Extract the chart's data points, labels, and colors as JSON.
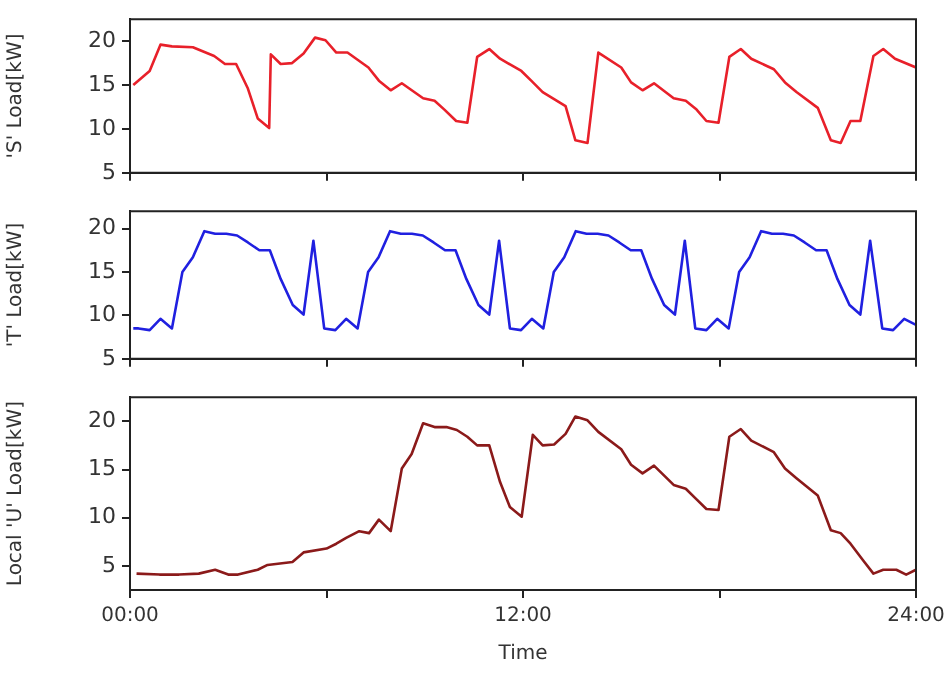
{
  "chart_data": [
    {
      "type": "line",
      "ylabel": "'S' Load[kW]",
      "x": [
        0.1,
        0.6,
        0.93,
        1.28,
        1.92,
        2.57,
        2.9,
        3.24,
        3.6,
        3.9,
        4.25,
        4.3,
        4.6,
        4.95,
        5.3,
        5.65,
        5.97,
        6.3,
        6.64,
        7.28,
        7.6,
        7.96,
        8.3,
        8.95,
        9.3,
        9.6,
        9.96,
        10.3,
        10.6,
        10.97,
        11.3,
        11.95,
        12.25,
        12.6,
        13.3,
        13.6,
        13.97,
        14.3,
        15.0,
        15.3,
        15.65,
        16.0,
        16.6,
        16.97,
        17.3,
        17.6,
        17.97,
        18.3,
        18.65,
        18.97,
        19.66,
        20.0,
        20.35,
        21.0,
        21.4,
        21.7,
        22.0,
        22.3,
        22.7,
        23.0,
        23.36,
        24.0
      ],
      "series": [
        {
          "color": "#e8202a",
          "values": [
            15.0,
            16.6,
            19.6,
            19.4,
            19.3,
            18.3,
            17.4,
            17.4,
            14.6,
            11.2,
            10.1,
            18.5,
            17.4,
            17.5,
            18.6,
            20.4,
            20.1,
            18.7,
            18.7,
            17.0,
            15.5,
            14.4,
            15.2,
            13.5,
            13.2,
            12.2,
            10.9,
            10.7,
            18.2,
            19.1,
            18.0,
            16.6,
            15.5,
            14.2,
            12.6,
            8.7,
            8.4,
            18.7,
            17.0,
            15.3,
            14.4,
            15.2,
            13.5,
            13.2,
            12.2,
            10.9,
            10.7,
            18.2,
            19.1,
            18.0,
            16.8,
            15.3,
            14.2,
            12.4,
            8.7,
            8.4,
            10.9,
            10.9,
            18.3,
            19.1,
            18.0,
            17.0
          ]
        }
      ],
      "xlim": [
        0,
        24
      ],
      "xticks": [
        {
          "value": 0,
          "label": null
        },
        {
          "value": 6,
          "label": null
        },
        {
          "value": 12,
          "label": null
        },
        {
          "value": 18,
          "label": null
        },
        {
          "value": 24,
          "label": null
        }
      ],
      "ylim": [
        5,
        22.5
      ],
      "yticks": [
        5,
        10,
        15,
        20
      ],
      "tick_labels": "y",
      "grid": false,
      "legend": false,
      "marker": "none",
      "line_style": "solid"
    },
    {
      "type": "line",
      "ylabel": "'T' Load[kW]",
      "x": [
        0.1,
        0.26,
        0.6,
        0.93,
        1.28,
        1.6,
        1.92,
        2.27,
        2.6,
        2.94,
        3.27,
        3.6,
        3.95,
        4.27,
        4.6,
        4.97,
        5.3,
        5.6,
        5.93,
        6.27,
        6.6,
        6.95,
        7.27,
        7.59,
        7.94,
        8.27,
        8.61,
        8.94,
        9.27,
        9.62,
        9.94,
        10.27,
        10.64,
        10.97,
        11.27,
        11.6,
        11.94,
        12.27,
        12.62,
        12.94,
        13.26,
        13.61,
        13.94,
        14.28,
        14.61,
        14.94,
        15.29,
        15.61,
        15.94,
        16.31,
        16.64,
        16.94,
        17.26,
        17.6,
        17.93,
        18.28,
        18.6,
        18.92,
        19.27,
        19.6,
        19.94,
        20.27,
        20.6,
        20.95,
        21.27,
        21.6,
        21.97,
        22.3,
        22.6,
        22.97,
        23.3,
        23.64,
        24.0
      ],
      "series": [
        {
          "color": "#2020e0",
          "values": [
            8.5,
            8.5,
            8.3,
            9.6,
            8.5,
            15.0,
            16.7,
            19.7,
            19.4,
            19.4,
            19.2,
            18.4,
            17.5,
            17.5,
            14.2,
            11.2,
            10.1,
            18.6,
            8.5,
            8.3,
            9.6,
            8.5,
            15.0,
            16.7,
            19.7,
            19.4,
            19.4,
            19.2,
            18.4,
            17.5,
            17.5,
            14.2,
            11.2,
            10.1,
            18.6,
            8.5,
            8.3,
            9.6,
            8.5,
            15.0,
            16.7,
            19.7,
            19.4,
            19.4,
            19.2,
            18.4,
            17.5,
            17.5,
            14.2,
            11.2,
            10.1,
            18.6,
            8.5,
            8.3,
            9.6,
            8.5,
            15.0,
            16.7,
            19.7,
            19.4,
            19.4,
            19.2,
            18.4,
            17.5,
            17.5,
            14.2,
            11.2,
            10.1,
            18.6,
            8.5,
            8.3,
            9.6,
            8.9
          ]
        }
      ],
      "xlim": [
        0,
        24
      ],
      "xticks": [
        {
          "value": 0,
          "label": null
        },
        {
          "value": 6,
          "label": null
        },
        {
          "value": 12,
          "label": null
        },
        {
          "value": 18,
          "label": null
        },
        {
          "value": 24,
          "label": null
        }
      ],
      "ylim": [
        5,
        22
      ],
      "yticks": [
        5,
        10,
        15,
        20
      ],
      "tick_labels": "y",
      "grid": false,
      "legend": false,
      "marker": "none",
      "line_style": "solid"
    },
    {
      "type": "line",
      "ylabel": "Local 'U' Load[kW]",
      "xlabel": "Time",
      "x": [
        0.2,
        0.9,
        1.5,
        2.1,
        2.6,
        3.0,
        3.3,
        3.9,
        4.2,
        4.96,
        5.3,
        6.0,
        6.3,
        6.6,
        7.0,
        7.3,
        7.6,
        7.96,
        8.3,
        8.6,
        8.95,
        9.3,
        9.66,
        9.98,
        10.3,
        10.6,
        10.97,
        11.3,
        11.6,
        11.96,
        12.3,
        12.6,
        12.95,
        13.3,
        13.6,
        13.97,
        14.3,
        15.0,
        15.3,
        15.65,
        16.0,
        16.6,
        16.97,
        17.3,
        17.6,
        17.97,
        18.3,
        18.65,
        18.97,
        19.66,
        20.0,
        20.35,
        21.0,
        21.4,
        21.7,
        22.0,
        22.4,
        22.7,
        23.0,
        23.4,
        23.7,
        24.0
      ],
      "series": [
        {
          "color": "#8b1a1a",
          "values": [
            4.2,
            4.1,
            4.1,
            4.2,
            4.6,
            4.1,
            4.1,
            4.6,
            5.1,
            5.4,
            6.4,
            6.8,
            7.3,
            7.9,
            8.6,
            8.4,
            9.8,
            8.6,
            15.1,
            16.6,
            19.8,
            19.4,
            19.4,
            19.1,
            18.4,
            17.5,
            17.5,
            13.7,
            11.1,
            10.1,
            18.6,
            17.5,
            17.6,
            18.7,
            20.5,
            20.1,
            18.9,
            17.1,
            15.5,
            14.6,
            15.4,
            13.4,
            13.0,
            11.9,
            10.9,
            10.8,
            18.4,
            19.2,
            18.0,
            16.8,
            15.1,
            14.1,
            12.3,
            8.7,
            8.4,
            7.3,
            5.5,
            4.2,
            4.6,
            4.6,
            4.1,
            4.6
          ]
        }
      ],
      "xlim": [
        0,
        24
      ],
      "xticks": [
        {
          "value": 0,
          "label": "00:00"
        },
        {
          "value": 6,
          "label": null
        },
        {
          "value": 12,
          "label": "12:00"
        },
        {
          "value": 18,
          "label": null
        },
        {
          "value": 24,
          "label": "24:00"
        }
      ],
      "ylim": [
        2.5,
        22.5
      ],
      "yticks": [
        5,
        10,
        15,
        20
      ],
      "grid": false,
      "legend": false,
      "marker": "none",
      "line_style": "solid"
    }
  ]
}
